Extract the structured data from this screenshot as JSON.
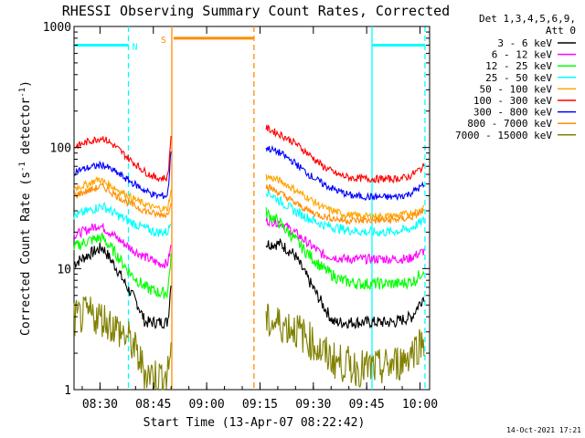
{
  "chart_data": {
    "type": "line",
    "title": "RHESSI Observing Summary Count Rates, Corrected",
    "xlabel": "Start Time (13-Apr-07 08:22:42)",
    "ylabel_main": "Corrected Count Rate (s",
    "ylabel_sup1": "-1",
    "ylabel_mid": " detector",
    "ylabel_sup2": "-1",
    "ylabel_end": ")",
    "x_unit": "minutes since 08:22:42",
    "xlim": [
      0,
      100
    ],
    "yscale": "log",
    "ylim": [
      1,
      1000
    ],
    "x_ticks": [
      {
        "value": 7.3,
        "label": "08:30"
      },
      {
        "value": 22.3,
        "label": "08:45"
      },
      {
        "value": 37.3,
        "label": "09:00"
      },
      {
        "value": 52.3,
        "label": "09:15"
      },
      {
        "value": 67.3,
        "label": "09:30"
      },
      {
        "value": 82.3,
        "label": "09:45"
      },
      {
        "value": 97.3,
        "label": "10:00"
      }
    ],
    "y_ticks": [
      {
        "value": 1,
        "label": "1"
      },
      {
        "value": 10,
        "label": "10"
      },
      {
        "value": 100,
        "label": "100"
      },
      {
        "value": 1000,
        "label": "1000"
      }
    ],
    "legend_header": [
      "Det 1,3,4,5,6,9,",
      "Att 0"
    ],
    "footer_date": "14-Oct-2021 17:21",
    "data_gap": [
      27.5,
      54.0
    ],
    "series": [
      {
        "name": "3 - 6 keV",
        "color": "#000000",
        "noise": 0.05,
        "points": [
          [
            0,
            11
          ],
          [
            4,
            13
          ],
          [
            8,
            15
          ],
          [
            12,
            10
          ],
          [
            15,
            7
          ],
          [
            18,
            5
          ],
          [
            20,
            3.6
          ],
          [
            24,
            3.6
          ],
          [
            26.3,
            3.6
          ],
          [
            26.8,
            5
          ],
          [
            27.4,
            9
          ],
          [
            54,
            16
          ],
          [
            58,
            16
          ],
          [
            62,
            13
          ],
          [
            66,
            8
          ],
          [
            70,
            5
          ],
          [
            73,
            3.6
          ],
          [
            78,
            3.6
          ],
          [
            85,
            3.6
          ],
          [
            90,
            3.6
          ],
          [
            95,
            4
          ],
          [
            98.5,
            6
          ]
        ]
      },
      {
        "name": "6 - 12 keV",
        "color": "#ff00ff",
        "noise": 0.04,
        "points": [
          [
            0,
            19
          ],
          [
            4,
            21
          ],
          [
            7,
            23
          ],
          [
            10,
            20
          ],
          [
            13,
            17
          ],
          [
            17,
            14
          ],
          [
            21,
            12
          ],
          [
            24,
            11
          ],
          [
            26.3,
            11
          ],
          [
            26.8,
            13
          ],
          [
            27.4,
            16
          ],
          [
            54,
            25
          ],
          [
            58,
            24
          ],
          [
            62,
            20
          ],
          [
            66,
            16
          ],
          [
            70,
            13
          ],
          [
            76,
            12
          ],
          [
            82,
            12
          ],
          [
            88,
            12
          ],
          [
            94,
            12
          ],
          [
            98.5,
            14
          ]
        ]
      },
      {
        "name": "12 - 25 keV",
        "color": "#00ff00",
        "noise": 0.05,
        "points": [
          [
            0,
            15
          ],
          [
            4,
            17
          ],
          [
            8,
            18
          ],
          [
            12,
            13
          ],
          [
            16,
            9
          ],
          [
            20,
            7
          ],
          [
            24,
            6.3
          ],
          [
            26.3,
            6.3
          ],
          [
            26.8,
            9
          ],
          [
            27.4,
            14
          ],
          [
            54,
            29
          ],
          [
            57,
            25
          ],
          [
            61,
            19
          ],
          [
            65,
            14
          ],
          [
            70,
            10
          ],
          [
            75,
            8
          ],
          [
            80,
            7.5
          ],
          [
            86,
            7.5
          ],
          [
            92,
            7.5
          ],
          [
            96,
            8
          ],
          [
            98.5,
            10
          ]
        ]
      },
      {
        "name": "25 - 50 keV",
        "color": "#00ffff",
        "noise": 0.04,
        "points": [
          [
            0,
            27
          ],
          [
            4,
            30
          ],
          [
            8,
            33
          ],
          [
            11,
            29
          ],
          [
            15,
            25
          ],
          [
            19,
            22
          ],
          [
            23,
            20
          ],
          [
            26.3,
            20
          ],
          [
            26.8,
            22
          ],
          [
            27.4,
            26
          ],
          [
            54,
            44
          ],
          [
            58,
            36
          ],
          [
            62,
            30
          ],
          [
            66,
            26
          ],
          [
            70,
            23
          ],
          [
            76,
            21
          ],
          [
            82,
            20
          ],
          [
            88,
            20
          ],
          [
            94,
            21
          ],
          [
            98.5,
            25
          ]
        ]
      },
      {
        "name": "50 - 100 keV",
        "color": "#ffa500",
        "noise": 0.03,
        "points": [
          [
            0,
            46
          ],
          [
            4,
            50
          ],
          [
            7,
            55
          ],
          [
            10,
            49
          ],
          [
            14,
            42
          ],
          [
            18,
            36
          ],
          [
            22,
            32
          ],
          [
            26.3,
            31
          ],
          [
            26.8,
            38
          ],
          [
            27.4,
            44
          ],
          [
            54,
            58
          ],
          [
            58,
            53
          ],
          [
            62,
            45
          ],
          [
            66,
            38
          ],
          [
            70,
            32
          ],
          [
            76,
            28
          ],
          [
            82,
            27
          ],
          [
            88,
            27
          ],
          [
            93,
            28
          ],
          [
            97,
            30
          ],
          [
            98.5,
            33
          ]
        ]
      },
      {
        "name": "100 - 300 keV",
        "color": "#ff0000",
        "noise": 0.03,
        "points": [
          [
            0,
            101
          ],
          [
            4,
            112
          ],
          [
            8,
            121
          ],
          [
            12,
            100
          ],
          [
            16,
            78
          ],
          [
            20,
            63
          ],
          [
            23,
            56
          ],
          [
            26.3,
            56
          ],
          [
            26.8,
            80
          ],
          [
            27.4,
            145
          ],
          [
            54,
            145
          ],
          [
            58,
            128
          ],
          [
            62,
            110
          ],
          [
            66,
            88
          ],
          [
            70,
            70
          ],
          [
            74,
            60
          ],
          [
            78,
            56
          ],
          [
            84,
            55
          ],
          [
            90,
            55
          ],
          [
            94,
            57
          ],
          [
            98.5,
            70
          ]
        ]
      },
      {
        "name": "300 - 800 keV",
        "color": "#0000ff",
        "noise": 0.03,
        "points": [
          [
            0,
            63
          ],
          [
            4,
            68
          ],
          [
            8,
            72
          ],
          [
            12,
            62
          ],
          [
            16,
            52
          ],
          [
            20,
            44
          ],
          [
            23,
            40
          ],
          [
            26.3,
            40
          ],
          [
            26.8,
            60
          ],
          [
            27.4,
            110
          ],
          [
            54,
            100
          ],
          [
            58,
            90
          ],
          [
            62,
            75
          ],
          [
            66,
            60
          ],
          [
            70,
            50
          ],
          [
            74,
            44
          ],
          [
            78,
            40
          ],
          [
            84,
            39
          ],
          [
            90,
            39
          ],
          [
            94,
            41
          ],
          [
            98.5,
            49
          ]
        ]
      },
      {
        "name": "800 - 7000 keV",
        "color": "#ff8c00",
        "noise": 0.03,
        "points": [
          [
            0,
            40
          ],
          [
            4,
            44
          ],
          [
            8,
            48
          ],
          [
            12,
            40
          ],
          [
            16,
            34
          ],
          [
            20,
            30
          ],
          [
            23,
            28
          ],
          [
            26.3,
            28
          ],
          [
            26.8,
            32
          ],
          [
            27.4,
            38
          ],
          [
            54,
            48
          ],
          [
            58,
            42
          ],
          [
            62,
            35
          ],
          [
            66,
            30
          ],
          [
            70,
            27
          ],
          [
            76,
            25
          ],
          [
            82,
            25
          ],
          [
            88,
            25
          ],
          [
            94,
            26
          ],
          [
            98.5,
            30
          ]
        ]
      },
      {
        "name": "7000 - 15000 keV",
        "color": "#808000",
        "noise": 0.16,
        "points": [
          [
            0,
            3.8
          ],
          [
            4,
            4.2
          ],
          [
            8,
            3.9
          ],
          [
            12,
            3.2
          ],
          [
            16,
            2.5
          ],
          [
            20,
            1.4
          ],
          [
            23,
            1.3
          ],
          [
            26.3,
            1.3
          ],
          [
            26.8,
            1.8
          ],
          [
            27.4,
            2.6
          ],
          [
            54,
            3.6
          ],
          [
            58,
            3.5
          ],
          [
            62,
            3.2
          ],
          [
            66,
            2.6
          ],
          [
            70,
            2.0
          ],
          [
            74,
            1.7
          ],
          [
            80,
            1.5
          ],
          [
            86,
            1.5
          ],
          [
            92,
            1.7
          ],
          [
            96,
            2.2
          ],
          [
            98.5,
            2.6
          ]
        ]
      }
    ],
    "annotations": [
      {
        "kind": "vline",
        "x": 15.3,
        "color": "#00ffff",
        "style": "dashed"
      },
      {
        "kind": "vline",
        "x": 83.8,
        "color": "#00ffff",
        "style": "solid"
      },
      {
        "kind": "vline",
        "x": 98.7,
        "color": "#00ffff",
        "style": "dashed"
      },
      {
        "kind": "vline",
        "x": 27.5,
        "color": "#ff8c00",
        "style": "solid"
      },
      {
        "kind": "vline",
        "x": 50.6,
        "color": "#ff8c00",
        "style": "dashed"
      },
      {
        "kind": "hbar",
        "x1": 0.3,
        "x2": 15.3,
        "y": 700,
        "color": "#00ffff",
        "label": "N"
      },
      {
        "kind": "hbar",
        "x1": 83.8,
        "x2": 98.7,
        "y": 700,
        "color": "#00ffff",
        "label": ""
      },
      {
        "kind": "hbar",
        "x1": 28.0,
        "x2": 50.6,
        "y": 800,
        "color": "#ff8c00",
        "label": "S"
      }
    ]
  }
}
